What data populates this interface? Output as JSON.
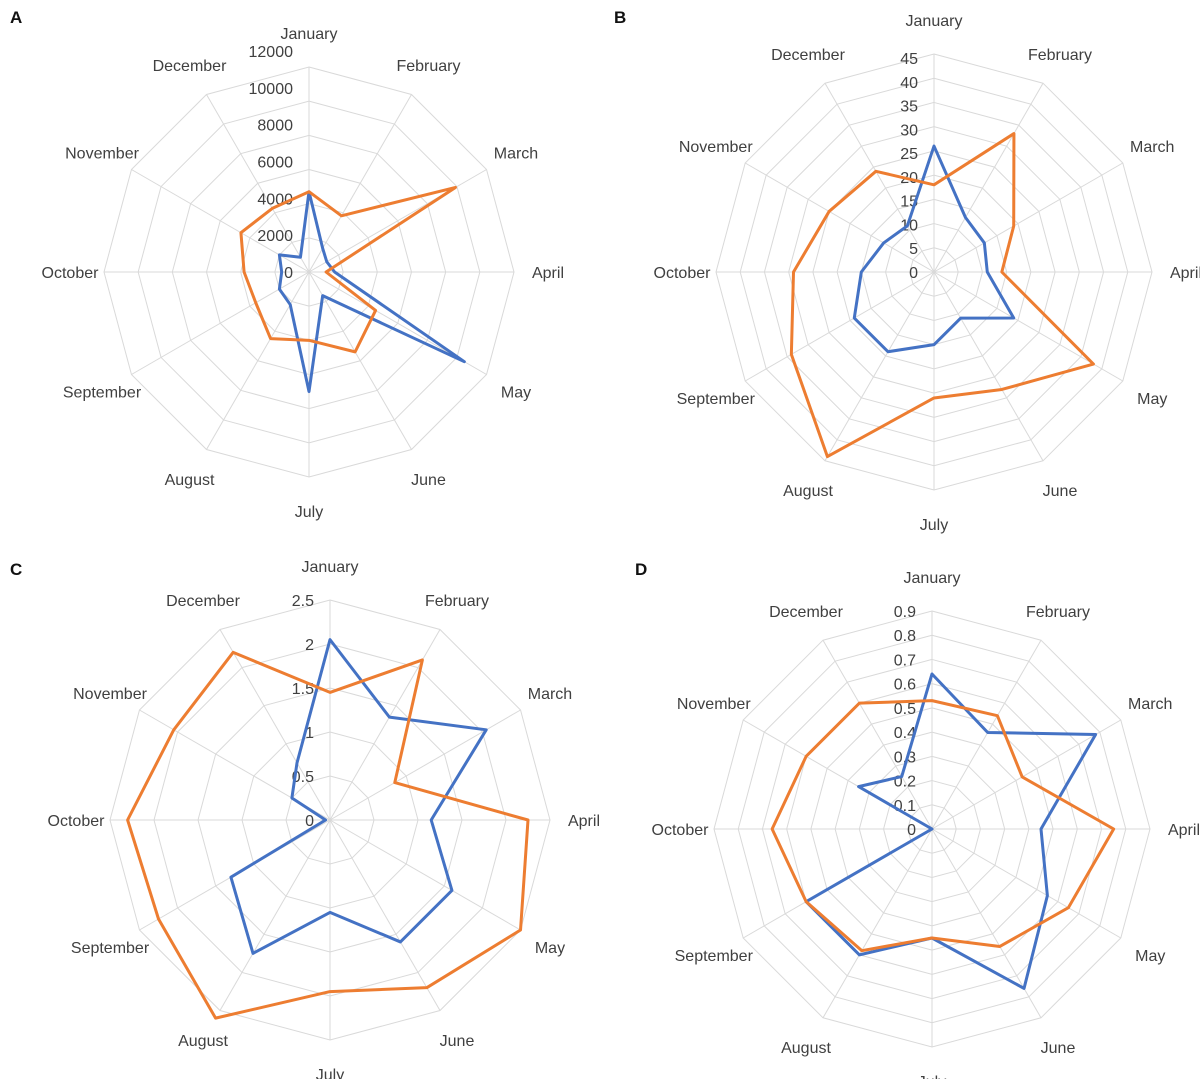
{
  "colors": {
    "blue": "#4472c4",
    "orange": "#ed7d31",
    "grid": "#d9d9d9",
    "text": "#404040"
  },
  "chart_data": [
    {
      "type": "radar",
      "panel_label": "A",
      "categories": [
        "January",
        "February",
        "March",
        "April",
        "May",
        "June",
        "July",
        "August",
        "September",
        "October",
        "November",
        "December"
      ],
      "ticks": [
        "0",
        "2000",
        "4000",
        "6000",
        "8000",
        "10000",
        "12000"
      ],
      "rmax": 12000,
      "grid": true,
      "series": [
        {
          "color": "blue",
          "values": [
            4700,
            1600,
            1200,
            1500,
            10500,
            1600,
            7000,
            2200,
            2000,
            1600,
            2000,
            1000
          ]
        },
        {
          "color": "orange",
          "values": [
            4700,
            3800,
            9900,
            1000,
            4500,
            5400,
            4000,
            4500,
            3600,
            3800,
            4600,
            4300
          ]
        }
      ]
    },
    {
      "type": "radar",
      "panel_label": "B",
      "categories": [
        "January",
        "February",
        "March",
        "April",
        "May",
        "June",
        "July",
        "August",
        "September",
        "October",
        "November",
        "December"
      ],
      "ticks": [
        "0",
        "5",
        "10",
        "15",
        "20",
        "25",
        "30",
        "35",
        "40",
        "45"
      ],
      "rmax": 45,
      "grid": true,
      "series": [
        {
          "color": "blue",
          "values": [
            26,
            13,
            12,
            11,
            19,
            11,
            15,
            19,
            19,
            15,
            12,
            11
          ]
        },
        {
          "color": "orange",
          "values": [
            18,
            33,
            19,
            14,
            38,
            28,
            26,
            44,
            34,
            29,
            25,
            24
          ]
        }
      ]
    },
    {
      "type": "radar",
      "panel_label": "C",
      "categories": [
        "January",
        "February",
        "March",
        "April",
        "May",
        "June",
        "July",
        "August",
        "September",
        "October",
        "November",
        "December"
      ],
      "ticks": [
        "0",
        "0.5",
        "1",
        "1.5",
        "2",
        "2.5"
      ],
      "rmax": 2.5,
      "grid": true,
      "series": [
        {
          "color": "blue",
          "values": [
            2.05,
            1.35,
            2.05,
            1.15,
            1.6,
            1.6,
            1.05,
            1.75,
            1.3,
            0.05,
            0.5,
            0.75
          ]
        },
        {
          "color": "orange",
          "values": [
            1.45,
            2.1,
            0.85,
            2.25,
            2.5,
            2.2,
            1.95,
            2.6,
            2.25,
            2.3,
            2.05,
            2.2
          ]
        }
      ]
    },
    {
      "type": "radar",
      "panel_label": "D",
      "categories": [
        "January",
        "February",
        "March",
        "April",
        "May",
        "June",
        "July",
        "August",
        "September",
        "October",
        "November",
        "December"
      ],
      "ticks": [
        "0",
        "0.1",
        "0.2",
        "0.3",
        "0.4",
        "0.5",
        "0.6",
        "0.7",
        "0.8",
        "0.9"
      ],
      "rmax": 0.9,
      "grid": true,
      "series": [
        {
          "color": "blue",
          "values": [
            0.64,
            0.46,
            0.78,
            0.45,
            0.55,
            0.76,
            0.45,
            0.6,
            0.6,
            0.0,
            0.35,
            0.25
          ]
        },
        {
          "color": "orange",
          "values": [
            0.53,
            0.54,
            0.43,
            0.75,
            0.65,
            0.56,
            0.45,
            0.58,
            0.6,
            0.66,
            0.6,
            0.6
          ]
        }
      ]
    }
  ]
}
